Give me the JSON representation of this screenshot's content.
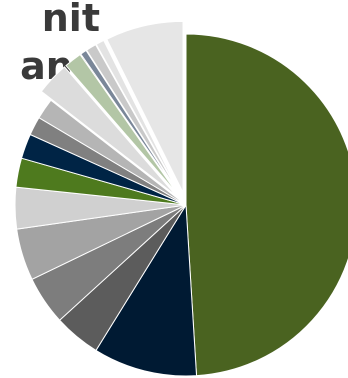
{
  "chart_data": {
    "type": "pie",
    "title_lines": [
      "nit",
      "and"
    ],
    "slices": [
      {
        "value": 50.0,
        "color": "#4a6320"
      },
      {
        "value": 10.0,
        "color": "#001a33"
      },
      {
        "value": 4.5,
        "color": "#5c5c5c"
      },
      {
        "value": 4.7,
        "color": "#7d7d7d"
      },
      {
        "value": 5.0,
        "color": "#a3a3a3"
      },
      {
        "value": 4.0,
        "color": "#d0d0d0"
      },
      {
        "value": 2.8,
        "color": "#4e7a1e"
      },
      {
        "value": 2.4,
        "color": "#002445"
      },
      {
        "value": 1.8,
        "color": "#808080"
      },
      {
        "value": 2.0,
        "color": "#b5b5b5"
      },
      {
        "value": 3.2,
        "color": "#dcdcdc"
      },
      {
        "value": 1.7,
        "color": "#b3c6a6"
      },
      {
        "value": 0.6,
        "color": "#7a8799"
      },
      {
        "value": 1.0,
        "color": "#c9c9c9"
      },
      {
        "value": 0.8,
        "color": "#e3e3e3"
      },
      {
        "value": 7.5,
        "color": "#e6e6e6"
      }
    ],
    "exploded_from_index": 10,
    "legend": "none"
  }
}
